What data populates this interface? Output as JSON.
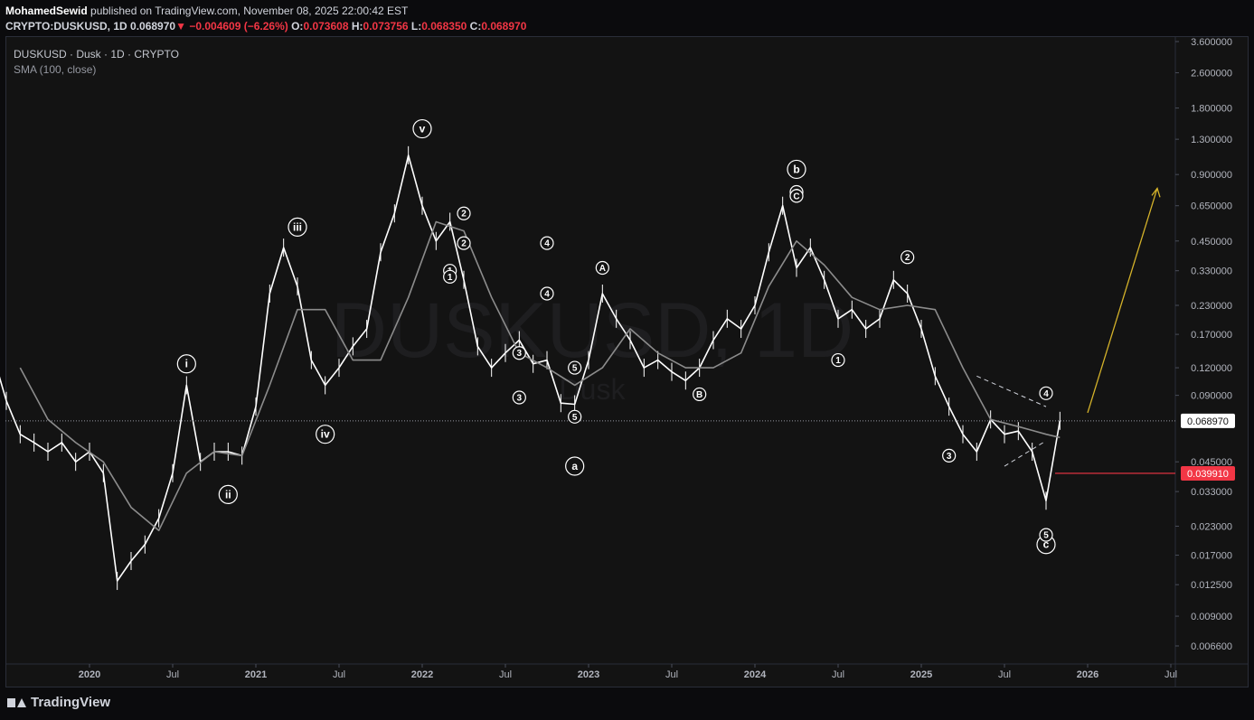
{
  "header": {
    "author": "MohamedSewid",
    "published_text": "published on TradingView.com, November 08, 2025 22:00:42 EST",
    "symbol": "CRYPTO:DUSKUSD, 1D",
    "last": "0.068970",
    "arrow": "▼",
    "change": "−0.004609 (−6.26%)",
    "o_label": "O:",
    "o_value": "0.073608",
    "h_label": "H:",
    "h_value": "0.073756",
    "l_label": "L:",
    "l_value": "0.068350",
    "c_label": "C:",
    "c_value": "0.068970"
  },
  "legend": {
    "title": "DUSKUSD · Dusk · 1D · CRYPTO",
    "indicator": "SMA (100, close)"
  },
  "watermark": {
    "ticker": "DUSKUSD, 1D",
    "name": "Dusk"
  },
  "footer": {
    "brand": "TradingView"
  },
  "colors": {
    "background": "#131313",
    "candles": "#ffffff",
    "sma": "#8c8c8c",
    "price_label": "#ffffff",
    "low_label": "#f23645",
    "projection_arrow": "#d4b22a",
    "down_color": "#f23645"
  },
  "chart_data": {
    "type": "line",
    "title": "DUSKUSD · Dusk · 1D · CRYPTO",
    "scale": "log",
    "y_tick_labels": [
      "3.600000",
      "2.600000",
      "1.800000",
      "1.300000",
      "0.900000",
      "0.650000",
      "0.450000",
      "0.330000",
      "0.230000",
      "0.170000",
      "0.120000",
      "0.090000",
      "0.045000",
      "0.033000",
      "0.023000",
      "0.017000",
      "0.012500",
      "0.009000",
      "0.006600"
    ],
    "x_tick_labels": [
      "2020",
      "Jul",
      "2021",
      "Jul",
      "2022",
      "Jul",
      "2023",
      "Jul",
      "2024",
      "Jul",
      "2025",
      "Jul",
      "2026",
      "Jul"
    ],
    "x_tick_dates": [
      "2020-01",
      "2020-07",
      "2021-01",
      "2021-07",
      "2022-01",
      "2022-07",
      "2023-01",
      "2023-07",
      "2024-01",
      "2024-07",
      "2025-01",
      "2025-07",
      "2026-01",
      "2026-07"
    ],
    "ylim": [
      0.0058,
      4.0
    ],
    "grid": false,
    "series": [
      {
        "name": "DUSKUSD",
        "dates": [
          "2019-04",
          "2019-05",
          "2019-06",
          "2019-07",
          "2019-08",
          "2019-09",
          "2019-10",
          "2019-11",
          "2019-12",
          "2020-01",
          "2020-02",
          "2020-03",
          "2020-04",
          "2020-05",
          "2020-06",
          "2020-07",
          "2020-08",
          "2020-09",
          "2020-10",
          "2020-11",
          "2020-12",
          "2021-01",
          "2021-02",
          "2021-03",
          "2021-04",
          "2021-05",
          "2021-06",
          "2021-07",
          "2021-08",
          "2021-09",
          "2021-10",
          "2021-11",
          "2021-12",
          "2022-01",
          "2022-02",
          "2022-03",
          "2022-04",
          "2022-05",
          "2022-06",
          "2022-07",
          "2022-08",
          "2022-09",
          "2022-10",
          "2022-11",
          "2022-12",
          "2023-01",
          "2023-02",
          "2023-03",
          "2023-04",
          "2023-05",
          "2023-06",
          "2023-07",
          "2023-08",
          "2023-09",
          "2023-10",
          "2023-11",
          "2023-12",
          "2024-01",
          "2024-02",
          "2024-03",
          "2024-04",
          "2024-05",
          "2024-06",
          "2024-07",
          "2024-08",
          "2024-09",
          "2024-10",
          "2024-11",
          "2024-12",
          "2025-01",
          "2025-02",
          "2025-03",
          "2025-04",
          "2025-05",
          "2025-06",
          "2025-07",
          "2025-08",
          "2025-09",
          "2025-10",
          "2025-11"
        ],
        "values": [
          0.17,
          0.21,
          0.14,
          0.085,
          0.06,
          0.055,
          0.05,
          0.055,
          0.045,
          0.05,
          0.04,
          0.013,
          0.016,
          0.019,
          0.025,
          0.04,
          0.1,
          0.045,
          0.05,
          0.05,
          0.048,
          0.08,
          0.26,
          0.42,
          0.28,
          0.13,
          0.1,
          0.12,
          0.15,
          0.18,
          0.4,
          0.6,
          1.1,
          0.65,
          0.45,
          0.55,
          0.3,
          0.15,
          0.12,
          0.14,
          0.16,
          0.125,
          0.13,
          0.083,
          0.082,
          0.13,
          0.26,
          0.2,
          0.16,
          0.12,
          0.13,
          0.115,
          0.105,
          0.12,
          0.16,
          0.2,
          0.18,
          0.23,
          0.4,
          0.65,
          0.34,
          0.42,
          0.3,
          0.2,
          0.22,
          0.18,
          0.2,
          0.3,
          0.26,
          0.18,
          0.11,
          0.08,
          0.06,
          0.05,
          0.07,
          0.06,
          0.062,
          0.05,
          0.03,
          0.069
        ]
      },
      {
        "name": "SMA (100, close)",
        "dates": [
          "2019-08",
          "2019-10",
          "2019-12",
          "2020-02",
          "2020-04",
          "2020-06",
          "2020-08",
          "2020-10",
          "2020-12",
          "2021-02",
          "2021-04",
          "2021-06",
          "2021-08",
          "2021-10",
          "2021-12",
          "2022-02",
          "2022-04",
          "2022-06",
          "2022-08",
          "2022-10",
          "2022-12",
          "2023-02",
          "2023-04",
          "2023-06",
          "2023-08",
          "2023-10",
          "2023-12",
          "2024-02",
          "2024-04",
          "2024-06",
          "2024-08",
          "2024-10",
          "2024-12",
          "2025-02",
          "2025-04",
          "2025-06",
          "2025-08",
          "2025-10",
          "2025-11"
        ],
        "values": [
          0.12,
          0.07,
          0.055,
          0.045,
          0.028,
          0.022,
          0.04,
          0.05,
          0.048,
          0.1,
          0.22,
          0.22,
          0.13,
          0.13,
          0.25,
          0.55,
          0.5,
          0.25,
          0.14,
          0.12,
          0.1,
          0.12,
          0.18,
          0.14,
          0.12,
          0.12,
          0.14,
          0.28,
          0.45,
          0.35,
          0.25,
          0.22,
          0.23,
          0.22,
          0.12,
          0.07,
          0.065,
          0.06,
          0.058
        ]
      }
    ],
    "current_price": "0.068970",
    "marked_low": "0.039910",
    "wave_labels": [
      "i",
      "ii",
      "iii",
      "iv",
      "v",
      "a",
      "b",
      "c",
      "1",
      "2",
      "3",
      "4",
      "5",
      "A",
      "B",
      "C",
      "1",
      "2",
      "3",
      "4",
      "5",
      "1",
      "2",
      "3",
      "4",
      "5",
      "C"
    ],
    "wave_label_values": [
      0.125,
      0.032,
      0.52,
      0.06,
      1.45,
      0.043,
      0.95,
      0.019,
      0.33,
      0.6,
      0.088,
      0.26,
      0.072,
      0.34,
      0.091,
      0.75,
      0.13,
      0.38,
      0.048,
      0.092,
      0.021,
      0.31,
      0.44,
      0.14,
      0.44,
      0.12,
      0.72
    ],
    "wave_label_dates": [
      "2020-08",
      "2020-11",
      "2021-04",
      "2021-06",
      "2022-01",
      "2022-12",
      "2024-04",
      "2025-10",
      "2022-03",
      "2022-04",
      "2022-08",
      "2022-10",
      "2022-12",
      "2023-02",
      "2023-09",
      "2024-04",
      "2024-07",
      "2024-12",
      "2025-03",
      "2025-10",
      "2025-10",
      "2022-03",
      "2022-04",
      "2022-08",
      "2022-10",
      "2022-12",
      "2024-04"
    ]
  }
}
